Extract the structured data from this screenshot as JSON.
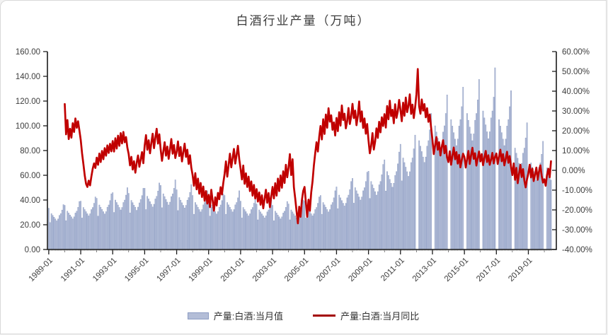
{
  "chart_data": {
    "type": "bar+line combo, dual axis",
    "title": "白酒行业产量（万吨）",
    "x_start": "1989-01",
    "x_end": "2020-06",
    "x_tick_labels": [
      "1989-01",
      "1991-01",
      "1993-01",
      "1995-01",
      "1997-01",
      "1999-01",
      "2001-01",
      "2003-01",
      "2005-01",
      "2007-01",
      "2009-01",
      "2011-01",
      "2013-01",
      "2015-01",
      "2017-01",
      "2019-01"
    ],
    "left_axis": {
      "min": 0,
      "max": 160,
      "step": 20,
      "tick_labels": [
        "160.00",
        "140.00",
        "120.00",
        "100.00",
        "80.00",
        "60.00",
        "40.00",
        "20.00",
        "0.00"
      ]
    },
    "right_axis": {
      "min": -40,
      "max": 60,
      "step": 10,
      "tick_labels": [
        "60.00%",
        "50.00%",
        "40.00%",
        "30.00%",
        "20.00%",
        "10.00%",
        "0.00%",
        "-10.00%",
        "-20.00%",
        "-30.00%",
        "-40.00%"
      ]
    },
    "colors": {
      "bar_fill": "#b3bdd7",
      "bar_border": "#8c9cc3",
      "line": "#c00000",
      "legend_line": "#a30000",
      "axis": "#1a1a1a",
      "tick_text": "#3d3d3d"
    },
    "legend_position": "bottom-center",
    "grid": "off",
    "series": [
      {
        "name": "产量:白酒:当月值",
        "type": "bar",
        "axis": "left",
        "unit": "万吨",
        "values": [
          33.4,
          21.8,
          29.0,
          27.6,
          26.1,
          24.7,
          23.2,
          24.7,
          27.6,
          29.0,
          31.9,
          36.3,
          35.7,
          23.3,
          31.0,
          29.5,
          27.9,
          26.4,
          24.8,
          26.4,
          29.5,
          31.0,
          34.1,
          38.8,
          39.1,
          25.5,
          34.0,
          32.3,
          30.6,
          28.9,
          27.2,
          28.9,
          32.3,
          34.0,
          37.4,
          42.5,
          41.4,
          27.0,
          36.0,
          34.2,
          32.4,
          30.6,
          28.8,
          30.6,
          34.2,
          36.0,
          39.6,
          45.0,
          46.0,
          30.0,
          40.0,
          38.0,
          36.0,
          34.0,
          32.0,
          34.0,
          38.0,
          40.0,
          44.0,
          50.0,
          45.4,
          29.6,
          39.7,
          37.9,
          35.8,
          34.2,
          31.7,
          34.3,
          37.7,
          40.4,
          43.6,
          49.5,
          49.5,
          32.3,
          43.0,
          40.9,
          38.7,
          36.6,
          34.4,
          36.6,
          40.9,
          43.0,
          47.3,
          53.8,
          51.8,
          33.8,
          45.0,
          42.8,
          40.5,
          38.3,
          36.0,
          38.3,
          42.8,
          45.0,
          49.5,
          56.3,
          48.3,
          31.5,
          42.0,
          39.9,
          37.8,
          35.7,
          33.6,
          35.7,
          39.9,
          42.0,
          46.2,
          52.5,
          43.7,
          28.5,
          38.0,
          36.1,
          34.2,
          32.3,
          30.4,
          32.3,
          36.1,
          38.0,
          41.8,
          47.5,
          41.4,
          27.0,
          36.0,
          34.2,
          32.4,
          30.6,
          28.8,
          30.6,
          34.2,
          36.0,
          39.6,
          45.0,
          43.7,
          28.5,
          38.0,
          36.1,
          34.2,
          32.3,
          30.4,
          32.3,
          36.1,
          38.0,
          41.8,
          47.5,
          39.1,
          25.5,
          34.0,
          32.3,
          30.6,
          28.9,
          27.2,
          28.9,
          32.3,
          34.0,
          37.4,
          42.5,
          36.8,
          24.0,
          32.0,
          30.4,
          28.8,
          27.2,
          25.6,
          27.2,
          30.4,
          32.0,
          35.2,
          40.0,
          35.7,
          23.3,
          31.0,
          29.5,
          27.9,
          26.4,
          24.8,
          26.4,
          29.5,
          31.0,
          34.1,
          38.8,
          36.8,
          24.0,
          32.0,
          30.4,
          28.8,
          27.2,
          25.6,
          27.2,
          30.4,
          32.0,
          35.2,
          40.0,
          39.1,
          25.5,
          34.0,
          32.3,
          30.6,
          28.9,
          27.2,
          28.9,
          32.3,
          34.0,
          37.4,
          42.5,
          43.7,
          28.5,
          38.0,
          36.1,
          34.2,
          32.3,
          30.4,
          32.3,
          36.1,
          38.0,
          41.8,
          47.5,
          50.6,
          33.0,
          44.0,
          41.8,
          39.6,
          37.4,
          35.2,
          37.4,
          41.8,
          44.0,
          48.4,
          55.0,
          57.5,
          37.5,
          50.0,
          47.5,
          45.0,
          42.5,
          40.0,
          42.5,
          47.5,
          50.0,
          55.0,
          62.5,
          63.3,
          41.3,
          55.0,
          52.3,
          49.5,
          46.8,
          44.0,
          46.8,
          52.3,
          55.0,
          60.5,
          68.8,
          72.5,
          47.3,
          63.0,
          59.9,
          56.7,
          53.6,
          50.4,
          53.6,
          59.9,
          63.0,
          69.3,
          78.8,
          85.1,
          55.5,
          74.0,
          70.3,
          66.6,
          62.9,
          59.2,
          62.9,
          70.3,
          74.0,
          81.4,
          92.5,
          null,
          null,
          88.0,
          83.6,
          79.2,
          74.8,
          70.4,
          74.8,
          83.6,
          88.0,
          96.8,
          110.0,
          null,
          null,
          100.0,
          95.0,
          90.0,
          85.0,
          80.0,
          85.0,
          95.0,
          100.0,
          110.0,
          125.0,
          null,
          null,
          105.0,
          99.8,
          94.5,
          89.3,
          84.0,
          89.3,
          99.8,
          105.0,
          115.5,
          131.3,
          null,
          null,
          110.0,
          104.5,
          99.0,
          93.5,
          88.0,
          93.5,
          104.5,
          110.0,
          121.0,
          137.5,
          null,
          null,
          112.0,
          106.4,
          100.8,
          95.2,
          89.6,
          95.2,
          106.4,
          112.0,
          123.2,
          146.9,
          null,
          null,
          105.0,
          99.8,
          94.5,
          89.3,
          84.0,
          89.3,
          99.8,
          105.0,
          115.5,
          128.4,
          null,
          null,
          82.0,
          77.9,
          73.8,
          69.7,
          65.6,
          69.7,
          77.9,
          82.0,
          90.2,
          102.5,
          null,
          null,
          70.0,
          66.5,
          63.0,
          59.5,
          56.0,
          59.5,
          66.5,
          70.0,
          77.0,
          87.5,
          null,
          null,
          66.0,
          62.7,
          59.4,
          56.1
        ]
      },
      {
        "name": "产量:白酒:当月同比",
        "type": "line",
        "axis": "right",
        "unit": "%",
        "values": [
          null,
          null,
          null,
          null,
          null,
          null,
          null,
          null,
          null,
          null,
          null,
          null,
          33.5,
          18.2,
          25.4,
          15.8,
          21.0,
          16.5,
          23.8,
          19.4,
          26.2,
          21.5,
          24.8,
          20.2,
          15.4,
          8.6,
          3.2,
          -2.5,
          -6.8,
          -8.4,
          -5.2,
          -7.6,
          -3.1,
          0.8,
          3.5,
          1.2,
          6.4,
          2.8,
          8.5,
          4.2,
          9.8,
          5.6,
          11.2,
          7.4,
          12.6,
          8.8,
          13.4,
          9.6,
          14.8,
          9.5,
          16.2,
          11.0,
          17.5,
          12.4,
          18.8,
          13.6,
          19.4,
          14.2,
          16.8,
          11.5,
          8.2,
          2.5,
          6.8,
          0.4,
          4.6,
          -1.2,
          3.8,
          7.5,
          1.8,
          5.4,
          9.2,
          3.6,
          12.5,
          17.8,
          10.4,
          15.2,
          8.6,
          13.8,
          18.5,
          11.2,
          16.4,
          21.0,
          13.5,
          18.2,
          10.6,
          4.8,
          9.5,
          14.2,
          7.4,
          12.0,
          5.8,
          10.5,
          15.8,
          8.4,
          12.8,
          6.2,
          9.4,
          14.6,
          7.2,
          11.8,
          4.5,
          9.2,
          13.5,
          6.8,
          10.4,
          3.2,
          7.6,
          1.4,
          -2.5,
          -7.8,
          -1.4,
          -9.6,
          -4.2,
          -11.8,
          -6.4,
          -13.5,
          -8.2,
          -15.4,
          -10.5,
          -16.8,
          -12.4,
          -18.6,
          -9.8,
          -15.2,
          -20.4,
          -13.6,
          -17.8,
          -11.4,
          -14.6,
          -8.5,
          -12.2,
          -6.4,
          -1.8,
          4.5,
          -3.2,
          2.6,
          8.4,
          1.5,
          6.2,
          10.8,
          3.4,
          7.8,
          12.4,
          5.6,
          0.8,
          -4.6,
          2.4,
          -6.8,
          -1.5,
          -8.4,
          -3.2,
          -10.5,
          -5.6,
          -12.8,
          -7.4,
          -14.2,
          -9.5,
          -15.8,
          -11.2,
          -17.4,
          -12.6,
          -19.2,
          -14.5,
          -9.8,
          -16.4,
          -11.5,
          -18.6,
          -13.2,
          -8.4,
          -14.2,
          -6.5,
          -12.8,
          -4.2,
          -10.5,
          -2.6,
          -8.8,
          -0.5,
          -6.4,
          2.8,
          -3.5,
          1.5,
          8.2,
          -2.4,
          5.6,
          -8.5,
          -14.2,
          -20.6,
          -26.8,
          -18.4,
          -23.5,
          -15.2,
          -10.4,
          -8.4,
          -16.2,
          -23.5,
          -14.8,
          -20.4,
          -11.2,
          -5.6,
          2.4,
          8.6,
          14.2,
          9.5,
          16.8,
          22.4,
          15.6,
          25.8,
          18.4,
          28.2,
          21.5,
          31.4,
          24.6,
          27.8,
          20.5,
          24.2,
          17.6,
          26.5,
          19.8,
          29.4,
          22.6,
          32.8,
          25.4,
          28.6,
          21.2,
          24.8,
          31.5,
          23.4,
          27.2,
          33.6,
          26.4,
          30.2,
          22.8,
          27.5,
          34.8,
          24.6,
          29.8,
          21.4,
          26.2,
          18.5,
          23.4,
          15.2,
          8.6,
          12.4,
          18.8,
          10.5,
          14.6,
          21.2,
          16.4,
          24.5,
          19.2,
          26.8,
          22.4,
          28.4,
          21.6,
          32.5,
          25.8,
          35.2,
          27.4,
          30.6,
          23.8,
          33.4,
          26.5,
          29.8,
          35.6,
          30.5,
          24.8,
          34.2,
          27.6,
          36.8,
          29.4,
          32.6,
          38.4,
          28.5,
          33.2,
          26.4,
          31.8,
          38.5,
          51.2,
          32.4,
          28.6,
          35.8,
          30.2,
          33.5,
          26.8,
          31.4,
          24.5,
          28.2,
          21.6,
          15.4,
          8.2,
          12.6,
          16.8,
          10.4,
          14.2,
          7.5,
          11.8,
          15.2,
          8.6,
          12.4,
          6.5,
          4.2,
          9.6,
          2.8,
          7.4,
          11.5,
          5.6,
          9.2,
          3.4,
          7.8,
          1.5,
          5.2,
          8.4,
          6.8,
          1.4,
          5.6,
          9.8,
          3.2,
          7.5,
          11.4,
          5.8,
          8.6,
          2.4,
          6.2,
          9.5,
          4.5,
          8.2,
          2.6,
          6.4,
          9.8,
          4.2,
          7.6,
          2.8,
          5.4,
          8.8,
          3.5,
          6.8,
          8.5,
          3.2,
          6.8,
          10.4,
          4.6,
          8.2,
          2.5,
          5.8,
          9.4,
          3.8,
          7.2,
          1.8,
          -2.4,
          3.5,
          -4.8,
          1.2,
          -6.5,
          -1.8,
          2.8,
          -3.4,
          0.6,
          -5.2,
          -8.6,
          -4.5,
          -1.5,
          2.8,
          -3.6,
          0.8,
          -5.4,
          -2.2,
          1.4,
          -4.8,
          -0.6,
          2.5,
          -2.8,
          -6.2,
          -4.5,
          -7.8,
          -2.4,
          0.8,
          -3.5,
          4.6
        ]
      }
    ]
  },
  "legend": {
    "bar_label": "产量:白酒:当月值",
    "line_label": "产量:白酒:当月同比"
  }
}
